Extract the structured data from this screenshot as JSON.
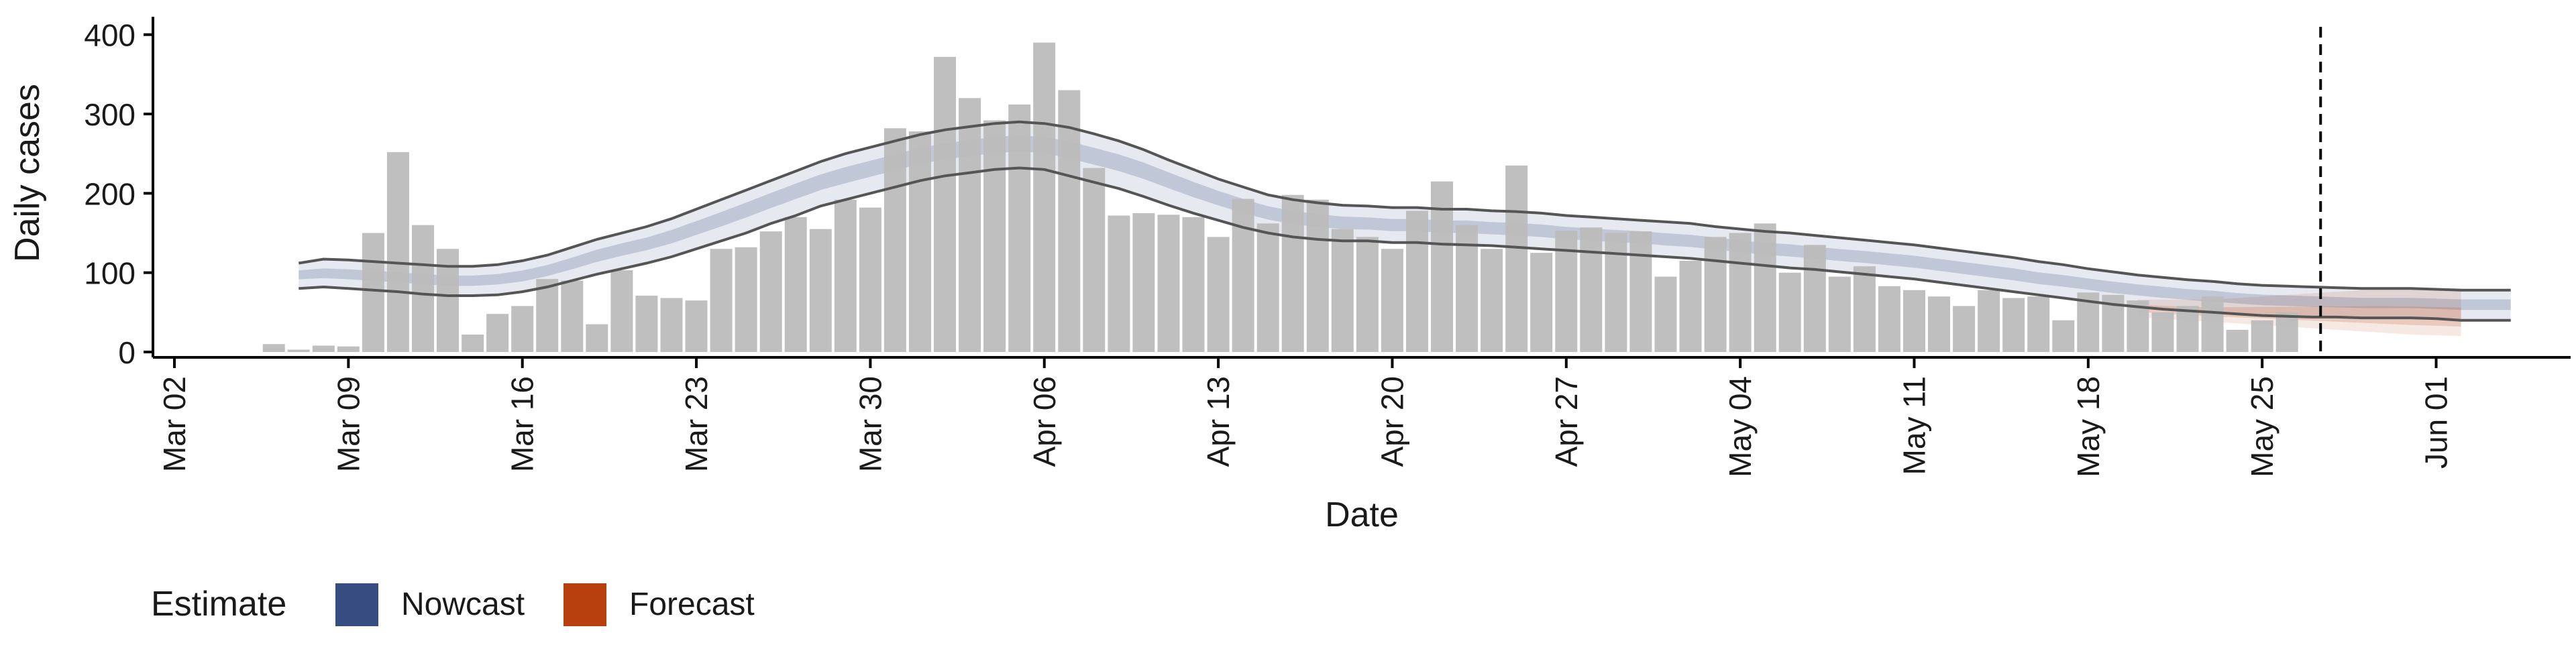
{
  "chart_data": {
    "type": "bar",
    "title": "",
    "xlabel": "Date",
    "ylabel": "Daily cases",
    "x_start_date": "2020-03-02",
    "x_end_date": "2020-06-04",
    "ylim": [
      0,
      420
    ],
    "y_ticks": [
      0,
      100,
      200,
      300,
      400
    ],
    "x_ticks": [
      {
        "date": "2020-03-02",
        "label": "Mar 02"
      },
      {
        "date": "2020-03-09",
        "label": "Mar 09"
      },
      {
        "date": "2020-03-16",
        "label": "Mar 16"
      },
      {
        "date": "2020-03-23",
        "label": "Mar 23"
      },
      {
        "date": "2020-03-30",
        "label": "Mar 30"
      },
      {
        "date": "2020-04-06",
        "label": "Apr 06"
      },
      {
        "date": "2020-04-13",
        "label": "Apr 13"
      },
      {
        "date": "2020-04-20",
        "label": "Apr 20"
      },
      {
        "date": "2020-04-27",
        "label": "Apr 27"
      },
      {
        "date": "2020-05-04",
        "label": "May 04"
      },
      {
        "date": "2020-05-11",
        "label": "May 11"
      },
      {
        "date": "2020-05-18",
        "label": "May 18"
      },
      {
        "date": "2020-05-25",
        "label": "May 25"
      },
      {
        "date": "2020-06-01",
        "label": "Jun 01"
      }
    ],
    "grid": false,
    "legend": {
      "title": "Estimate",
      "placement": "bottom-left",
      "entries": [
        {
          "label": "Nowcast",
          "color": "#374c80"
        },
        {
          "label": "Forecast",
          "color": "#b8400f"
        }
      ]
    },
    "vline_date": "2020-05-27",
    "bars": {
      "start_date": "2020-03-06",
      "color": "#bcbcbc",
      "values": [
        10,
        3,
        8,
        7,
        150,
        252,
        160,
        130,
        22,
        48,
        58,
        92,
        90,
        35,
        103,
        71,
        68,
        65,
        130,
        132,
        152,
        170,
        155,
        192,
        182,
        282,
        278,
        372,
        320,
        292,
        312,
        390,
        330,
        232,
        172,
        175,
        173,
        170,
        145,
        193,
        162,
        198,
        192,
        155,
        145,
        130,
        178,
        215,
        160,
        130,
        235,
        125,
        153,
        157,
        150,
        152,
        95,
        115,
        145,
        150,
        162,
        100,
        135,
        95,
        108,
        83,
        78,
        70,
        58,
        78,
        68,
        70,
        40,
        75,
        72,
        65,
        50,
        58,
        70,
        28,
        40,
        50
      ]
    },
    "nowcast": {
      "color": "#374c80",
      "start_date": "2020-03-07",
      "median": [
        98,
        99,
        98,
        96,
        94,
        92,
        90,
        90,
        92,
        96,
        103,
        112,
        122,
        130,
        137,
        146,
        157,
        168,
        180,
        192,
        204,
        215,
        224,
        232,
        240,
        248,
        254,
        258,
        262,
        264,
        262,
        256,
        248,
        240,
        230,
        218,
        206,
        195,
        185,
        176,
        170,
        166,
        163,
        162,
        160,
        160,
        158,
        158,
        156,
        155,
        153,
        150,
        148,
        146,
        145,
        142,
        140,
        137,
        133,
        130,
        128,
        125,
        122,
        120,
        117,
        114,
        110,
        106,
        102,
        98,
        93,
        90,
        86,
        82,
        79,
        76,
        73,
        71,
        68,
        66,
        65,
        64,
        63,
        62,
        62,
        62,
        61,
        60,
        60,
        60
      ],
      "ci90_low": [
        80,
        82,
        80,
        78,
        76,
        73,
        71,
        71,
        72,
        76,
        82,
        90,
        98,
        105,
        112,
        120,
        130,
        140,
        150,
        162,
        172,
        184,
        192,
        200,
        208,
        216,
        222,
        226,
        230,
        232,
        230,
        222,
        214,
        206,
        196,
        185,
        175,
        166,
        157,
        150,
        145,
        142,
        140,
        140,
        138,
        138,
        136,
        135,
        134,
        132,
        130,
        128,
        126,
        124,
        122,
        120,
        118,
        115,
        112,
        109,
        106,
        104,
        101,
        98,
        95,
        92,
        88,
        84,
        80,
        76,
        72,
        68,
        64,
        60,
        57,
        54,
        52,
        50,
        48,
        46,
        45,
        44,
        44,
        43,
        43,
        43,
        42,
        40,
        40,
        40
      ],
      "ci90_high": [
        112,
        117,
        116,
        114,
        112,
        110,
        108,
        108,
        110,
        115,
        122,
        132,
        142,
        150,
        158,
        168,
        180,
        192,
        204,
        216,
        228,
        240,
        250,
        258,
        266,
        274,
        280,
        284,
        288,
        290,
        288,
        283,
        275,
        266,
        255,
        242,
        230,
        218,
        208,
        198,
        192,
        188,
        185,
        184,
        182,
        182,
        180,
        180,
        178,
        177,
        175,
        172,
        170,
        168,
        166,
        164,
        162,
        158,
        155,
        152,
        150,
        147,
        144,
        141,
        138,
        135,
        131,
        127,
        123,
        119,
        114,
        110,
        105,
        101,
        97,
        94,
        91,
        89,
        86,
        84,
        83,
        82,
        81,
        80,
        80,
        80,
        79,
        78,
        78,
        78
      ]
    },
    "forecast": {
      "color": "#b8400f",
      "start_date": "2020-05-20",
      "median": [
        55,
        53,
        51,
        50,
        49,
        48,
        47,
        46,
        45,
        44,
        43,
        42,
        41,
        40
      ],
      "ci_low": [
        44,
        42,
        40,
        38,
        36,
        34,
        32,
        30,
        28,
        26,
        24,
        22,
        21,
        20
      ],
      "ci_high": [
        66,
        66,
        66,
        66,
        68,
        70,
        72,
        74,
        76,
        78,
        80,
        80,
        80,
        80
      ]
    }
  }
}
